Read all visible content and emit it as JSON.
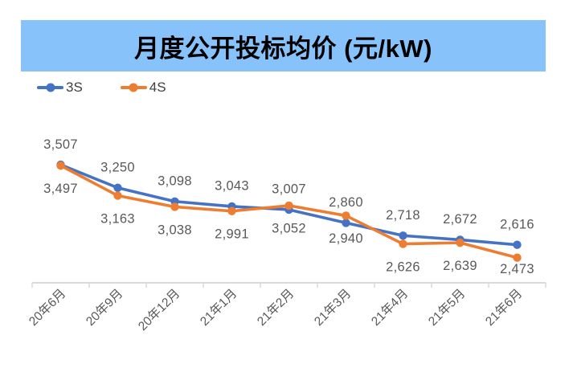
{
  "chart_data": {
    "type": "line",
    "title": "月度公开投标均价 (元/kW)",
    "categories": [
      "20年6月",
      "20年9月",
      "20年12月",
      "21年1月",
      "21年2月",
      "21年3月",
      "21年4月",
      "21年5月",
      "21年6月"
    ],
    "series": [
      {
        "name": "3S",
        "color": "#4472C4",
        "label_position": "above",
        "values": [
          3507,
          3250,
          3098,
          3043,
          3007,
          2860,
          2718,
          2672,
          2616
        ]
      },
      {
        "name": "4S",
        "color": "#ED7D31",
        "label_position": "below",
        "values": [
          3497,
          3163,
          3038,
          2991,
          3052,
          2940,
          2626,
          2639,
          2473
        ]
      }
    ],
    "legend_position": "top-left",
    "grid": "off",
    "xlabel": "",
    "ylabel": "",
    "banner_color": "#87C2FA",
    "axis_color": "#D9D9D9",
    "data_label_color": "#595959",
    "tick_label_color": "#595959"
  }
}
